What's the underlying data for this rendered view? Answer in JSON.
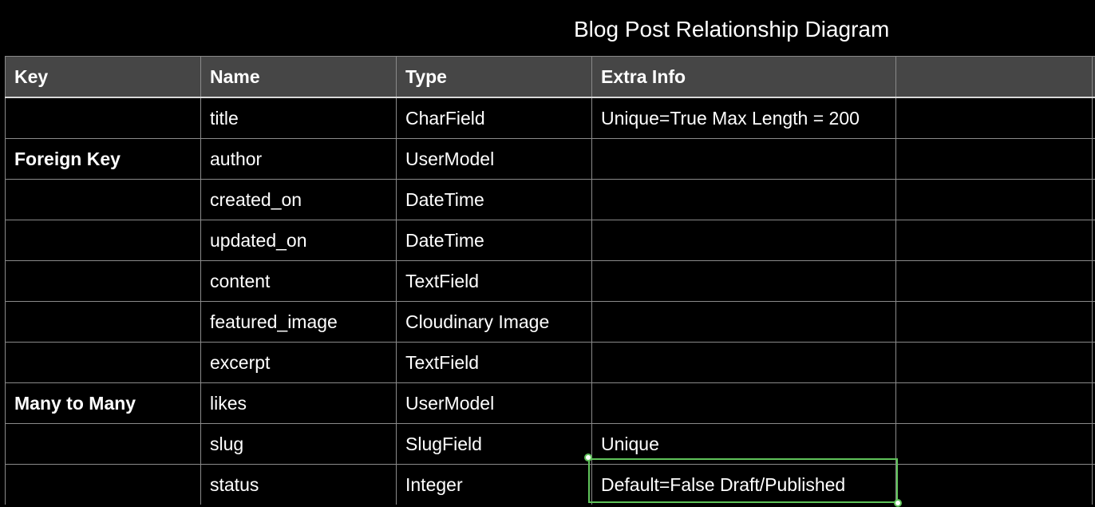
{
  "title": "Blog Post Relationship Diagram",
  "table": {
    "headers": [
      "Key",
      "Name",
      "Type",
      "Extra Info",
      "",
      ""
    ],
    "rows": [
      {
        "key": "",
        "name": "title",
        "type": "CharField",
        "extra": "Unique=True Max Length = 200"
      },
      {
        "key": "Foreign Key",
        "name": "author",
        "type": "UserModel",
        "extra": ""
      },
      {
        "key": "",
        "name": "created_on",
        "type": "DateTime",
        "extra": ""
      },
      {
        "key": "",
        "name": "updated_on",
        "type": "DateTime",
        "extra": ""
      },
      {
        "key": "",
        "name": "content",
        "type": "TextField",
        "extra": ""
      },
      {
        "key": "",
        "name": "featured_image",
        "type": "Cloudinary Image",
        "extra": ""
      },
      {
        "key": "",
        "name": "excerpt",
        "type": "TextField",
        "extra": ""
      },
      {
        "key": "Many to Many",
        "name": "likes",
        "type": "UserModel",
        "extra": ""
      },
      {
        "key": "",
        "name": "slug",
        "type": "SlugField",
        "extra": "Unique"
      },
      {
        "key": "",
        "name": "status",
        "type": "Integer",
        "extra": "Default=False Draft/Published"
      }
    ]
  },
  "colors": {
    "background": "#000000",
    "header_background": "#464646",
    "grid_line": "#8a8a8a",
    "selection": "#5fc35a",
    "text": "#ffffff"
  }
}
